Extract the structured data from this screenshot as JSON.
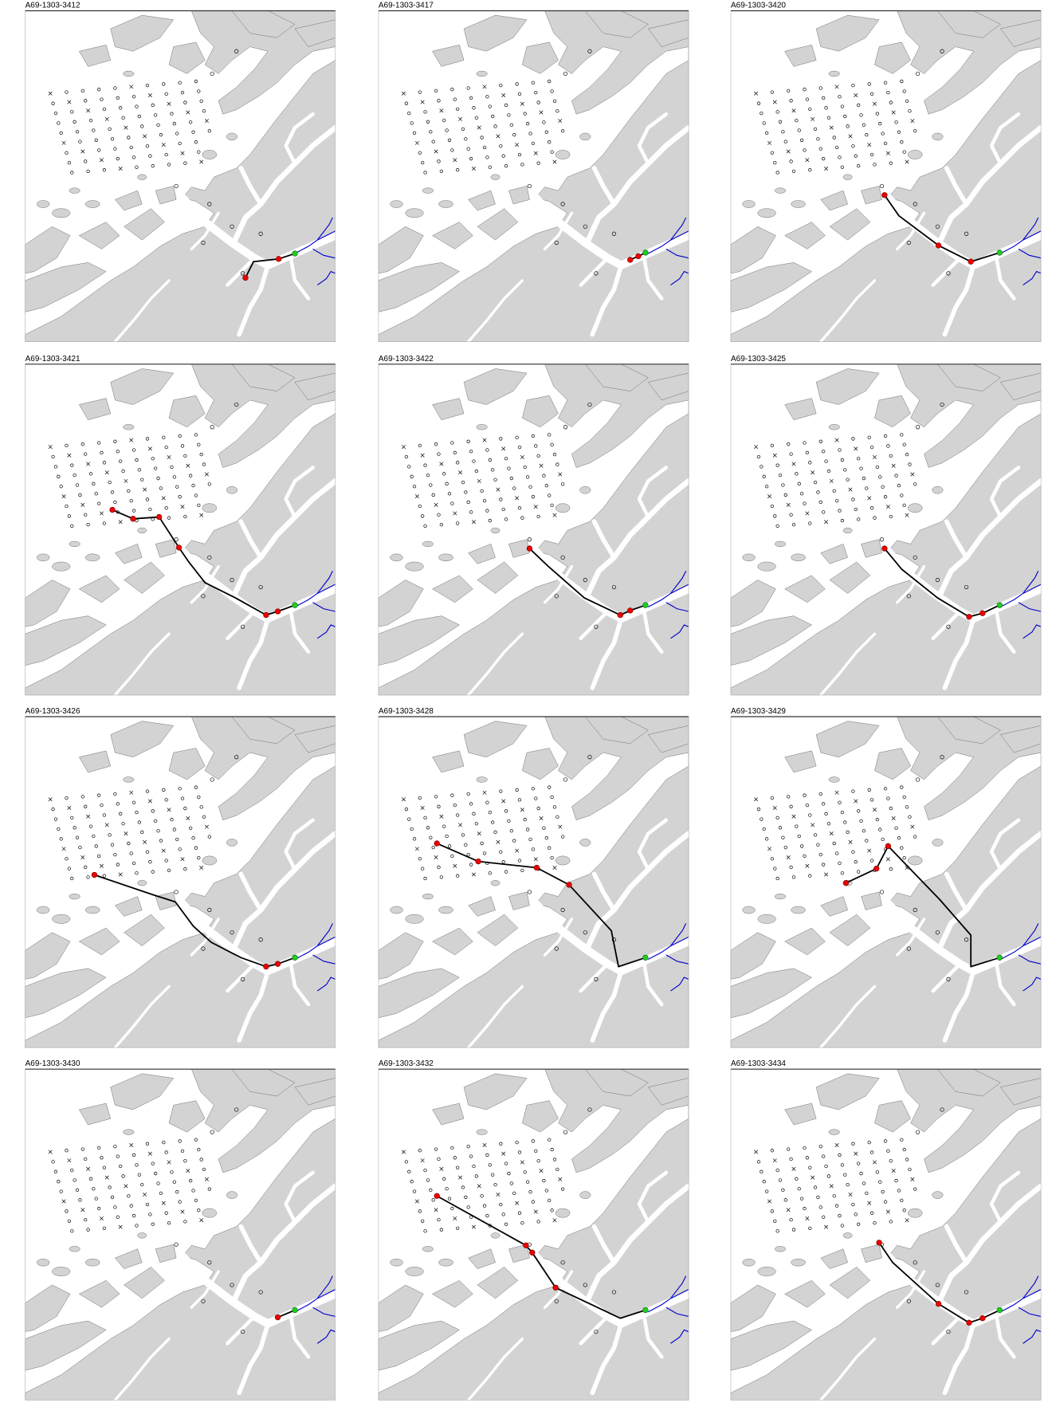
{
  "panels": [
    {
      "title": "A69-1303-3412"
    },
    {
      "title": "A69-1303-3417"
    },
    {
      "title": "A69-1303-3420"
    },
    {
      "title": "A69-1303-3421"
    },
    {
      "title": "A69-1303-3422"
    },
    {
      "title": "A69-1303-3425"
    },
    {
      "title": "A69-1303-3426"
    },
    {
      "title": "A69-1303-3428"
    },
    {
      "title": "A69-1303-3429"
    },
    {
      "title": "A69-1303-3430"
    },
    {
      "title": "A69-1303-3432"
    },
    {
      "title": "A69-1303-3434"
    }
  ]
}
